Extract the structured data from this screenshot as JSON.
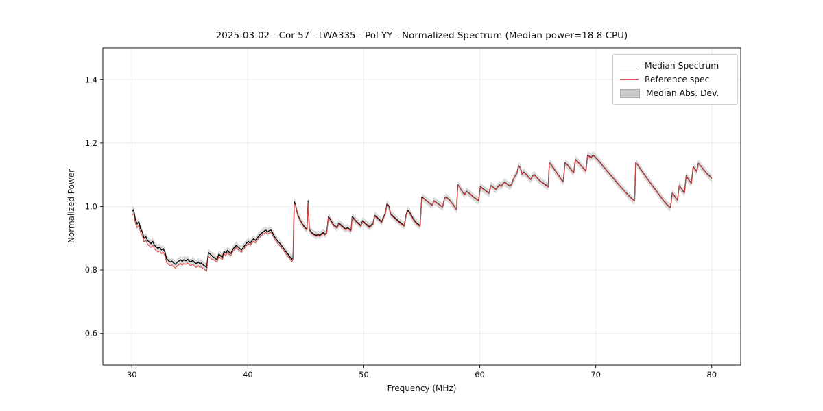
{
  "figure": {
    "title": "2025-03-02 - Cor 57 - LWA335 - Pol YY - Normalized Spectrum (Median power=18.8 CPU)",
    "xlabel": "Frequency (MHz)",
    "ylabel": "Normalized Power"
  },
  "legend": {
    "position": "upper right",
    "items": [
      {
        "label": "Median Spectrum",
        "type": "line",
        "color": "#000000"
      },
      {
        "label": "Reference spec",
        "type": "line",
        "color": "#e04b4b"
      },
      {
        "label": "Median Abs. Dev.",
        "type": "patch",
        "color": "#c9c9c9"
      }
    ]
  },
  "chart_data": {
    "type": "line",
    "title": "2025-03-02 - Cor 57 - LWA335 - Pol YY - Normalized Spectrum (Median power=18.8 CPU)",
    "xlabel": "Frequency (MHz)",
    "ylabel": "Normalized Power",
    "xlim": [
      27.5,
      82.5
    ],
    "ylim": [
      0.5,
      1.5
    ],
    "xticks": [
      30,
      40,
      50,
      60,
      70,
      80
    ],
    "xtick_labels": [
      "30",
      "40",
      "50",
      "60",
      "70",
      "80"
    ],
    "yticks": [
      0.6,
      0.8,
      1.0,
      1.2,
      1.4
    ],
    "ytick_labels": [
      "0.6",
      "0.8",
      "1.0",
      "1.2",
      "1.4"
    ],
    "grid": true,
    "legend_position": "upper right",
    "colors": {
      "median": "#000000",
      "reference": "#e04b4b",
      "band": "#b0b0b0",
      "grid": "#ebebeb",
      "spine": "#1a1a1a"
    },
    "band_halfwidth": 0.012,
    "reference_offsets": [
      {
        "x_max": 37,
        "dy": -0.012
      },
      {
        "x_max": 44,
        "dy": -0.007
      },
      {
        "x_max": 55,
        "dy": -0.003
      },
      {
        "x_max": 82.5,
        "dy": -0.001
      }
    ],
    "series_median_points": [
      [
        30.0,
        0.985
      ],
      [
        30.15,
        0.99
      ],
      [
        30.3,
        0.96
      ],
      [
        30.45,
        0.945
      ],
      [
        30.6,
        0.952
      ],
      [
        30.75,
        0.93
      ],
      [
        30.9,
        0.92
      ],
      [
        31.05,
        0.9
      ],
      [
        31.2,
        0.905
      ],
      [
        31.35,
        0.893
      ],
      [
        31.5,
        0.888
      ],
      [
        31.65,
        0.883
      ],
      [
        31.8,
        0.89
      ],
      [
        31.95,
        0.878
      ],
      [
        32.1,
        0.873
      ],
      [
        32.25,
        0.868
      ],
      [
        32.4,
        0.872
      ],
      [
        32.55,
        0.863
      ],
      [
        32.7,
        0.868
      ],
      [
        32.85,
        0.856
      ],
      [
        33.0,
        0.835
      ],
      [
        33.15,
        0.83
      ],
      [
        33.3,
        0.825
      ],
      [
        33.45,
        0.828
      ],
      [
        33.6,
        0.822
      ],
      [
        33.75,
        0.818
      ],
      [
        33.9,
        0.824
      ],
      [
        34.05,
        0.828
      ],
      [
        34.2,
        0.832
      ],
      [
        34.35,
        0.827
      ],
      [
        34.5,
        0.833
      ],
      [
        34.65,
        0.829
      ],
      [
        34.8,
        0.834
      ],
      [
        34.95,
        0.828
      ],
      [
        35.1,
        0.825
      ],
      [
        35.25,
        0.83
      ],
      [
        35.4,
        0.824
      ],
      [
        35.55,
        0.82
      ],
      [
        35.7,
        0.826
      ],
      [
        35.85,
        0.82
      ],
      [
        36.0,
        0.822
      ],
      [
        36.15,
        0.816
      ],
      [
        36.3,
        0.812
      ],
      [
        36.45,
        0.808
      ],
      [
        36.6,
        0.855
      ],
      [
        36.75,
        0.85
      ],
      [
        36.9,
        0.845
      ],
      [
        37.05,
        0.84
      ],
      [
        37.2,
        0.836
      ],
      [
        37.35,
        0.832
      ],
      [
        37.5,
        0.85
      ],
      [
        37.65,
        0.845
      ],
      [
        37.8,
        0.84
      ],
      [
        37.95,
        0.858
      ],
      [
        38.1,
        0.853
      ],
      [
        38.25,
        0.862
      ],
      [
        38.4,
        0.856
      ],
      [
        38.55,
        0.852
      ],
      [
        38.7,
        0.865
      ],
      [
        38.85,
        0.872
      ],
      [
        39.0,
        0.878
      ],
      [
        39.15,
        0.872
      ],
      [
        39.3,
        0.868
      ],
      [
        39.45,
        0.863
      ],
      [
        39.6,
        0.87
      ],
      [
        39.75,
        0.878
      ],
      [
        39.9,
        0.885
      ],
      [
        40.05,
        0.89
      ],
      [
        40.2,
        0.884
      ],
      [
        40.35,
        0.892
      ],
      [
        40.5,
        0.898
      ],
      [
        40.65,
        0.893
      ],
      [
        40.8,
        0.9
      ],
      [
        40.95,
        0.908
      ],
      [
        41.1,
        0.913
      ],
      [
        41.25,
        0.918
      ],
      [
        41.4,
        0.922
      ],
      [
        41.55,
        0.926
      ],
      [
        41.7,
        0.92
      ],
      [
        41.85,
        0.924
      ],
      [
        42.0,
        0.926
      ],
      [
        42.15,
        0.916
      ],
      [
        42.3,
        0.905
      ],
      [
        42.45,
        0.897
      ],
      [
        42.6,
        0.89
      ],
      [
        42.75,
        0.884
      ],
      [
        42.9,
        0.877
      ],
      [
        43.05,
        0.87
      ],
      [
        43.2,
        0.862
      ],
      [
        43.35,
        0.855
      ],
      [
        43.5,
        0.848
      ],
      [
        43.65,
        0.84
      ],
      [
        43.8,
        0.834
      ],
      [
        43.9,
        0.84
      ],
      [
        44.0,
        1.015
      ],
      [
        44.1,
        1.008
      ],
      [
        44.2,
        0.988
      ],
      [
        44.35,
        0.97
      ],
      [
        44.5,
        0.958
      ],
      [
        44.65,
        0.948
      ],
      [
        44.8,
        0.94
      ],
      [
        44.95,
        0.933
      ],
      [
        45.1,
        0.928
      ],
      [
        45.2,
        1.018
      ],
      [
        45.3,
        0.928
      ],
      [
        45.45,
        0.92
      ],
      [
        45.6,
        0.915
      ],
      [
        45.75,
        0.912
      ],
      [
        45.9,
        0.909
      ],
      [
        46.05,
        0.913
      ],
      [
        46.2,
        0.909
      ],
      [
        46.35,
        0.914
      ],
      [
        46.5,
        0.918
      ],
      [
        46.65,
        0.913
      ],
      [
        46.8,
        0.917
      ],
      [
        46.95,
        0.968
      ],
      [
        47.1,
        0.96
      ],
      [
        47.25,
        0.95
      ],
      [
        47.4,
        0.942
      ],
      [
        47.55,
        0.938
      ],
      [
        47.7,
        0.934
      ],
      [
        47.85,
        0.948
      ],
      [
        48.0,
        0.943
      ],
      [
        48.15,
        0.938
      ],
      [
        48.3,
        0.933
      ],
      [
        48.45,
        0.929
      ],
      [
        48.6,
        0.934
      ],
      [
        48.75,
        0.929
      ],
      [
        48.9,
        0.925
      ],
      [
        49.0,
        0.968
      ],
      [
        49.15,
        0.962
      ],
      [
        49.3,
        0.955
      ],
      [
        49.45,
        0.95
      ],
      [
        49.6,
        0.945
      ],
      [
        49.75,
        0.94
      ],
      [
        49.9,
        0.955
      ],
      [
        50.05,
        0.95
      ],
      [
        50.2,
        0.945
      ],
      [
        50.35,
        0.94
      ],
      [
        50.5,
        0.936
      ],
      [
        50.65,
        0.942
      ],
      [
        50.8,
        0.947
      ],
      [
        50.95,
        0.972
      ],
      [
        51.1,
        0.967
      ],
      [
        51.25,
        0.962
      ],
      [
        51.4,
        0.957
      ],
      [
        51.55,
        0.952
      ],
      [
        51.7,
        0.966
      ],
      [
        51.85,
        0.978
      ],
      [
        52.0,
        1.008
      ],
      [
        52.15,
        1.002
      ],
      [
        52.3,
        0.978
      ],
      [
        52.45,
        0.972
      ],
      [
        52.6,
        0.967
      ],
      [
        52.75,
        0.962
      ],
      [
        52.9,
        0.957
      ],
      [
        53.05,
        0.952
      ],
      [
        53.2,
        0.948
      ],
      [
        53.35,
        0.944
      ],
      [
        53.5,
        0.94
      ],
      [
        53.65,
        0.975
      ],
      [
        53.8,
        0.988
      ],
      [
        53.95,
        0.982
      ],
      [
        54.1,
        0.972
      ],
      [
        54.25,
        0.962
      ],
      [
        54.4,
        0.954
      ],
      [
        54.55,
        0.948
      ],
      [
        54.7,
        0.944
      ],
      [
        54.85,
        0.94
      ],
      [
        55.0,
        1.03
      ],
      [
        55.15,
        1.026
      ],
      [
        55.3,
        1.021
      ],
      [
        55.45,
        1.017
      ],
      [
        55.6,
        1.013
      ],
      [
        55.75,
        1.008
      ],
      [
        55.9,
        1.004
      ],
      [
        56.05,
        1.018
      ],
      [
        56.2,
        1.014
      ],
      [
        56.35,
        1.01
      ],
      [
        56.5,
        1.006
      ],
      [
        56.65,
        1.002
      ],
      [
        56.8,
        0.998
      ],
      [
        56.95,
        1.025
      ],
      [
        57.1,
        1.03
      ],
      [
        57.25,
        1.025
      ],
      [
        57.4,
        1.02
      ],
      [
        57.55,
        1.013
      ],
      [
        57.7,
        1.006
      ],
      [
        57.85,
        0.998
      ],
      [
        58.0,
        0.99
      ],
      [
        58.1,
        1.068
      ],
      [
        58.25,
        1.062
      ],
      [
        58.4,
        1.052
      ],
      [
        58.55,
        1.044
      ],
      [
        58.7,
        1.038
      ],
      [
        58.85,
        1.048
      ],
      [
        59.0,
        1.044
      ],
      [
        59.15,
        1.04
      ],
      [
        59.3,
        1.035
      ],
      [
        59.45,
        1.03
      ],
      [
        59.6,
        1.026
      ],
      [
        59.75,
        1.022
      ],
      [
        59.9,
        1.018
      ],
      [
        60.05,
        1.062
      ],
      [
        60.2,
        1.058
      ],
      [
        60.35,
        1.054
      ],
      [
        60.5,
        1.05
      ],
      [
        60.65,
        1.046
      ],
      [
        60.8,
        1.042
      ],
      [
        60.95,
        1.066
      ],
      [
        61.1,
        1.062
      ],
      [
        61.25,
        1.058
      ],
      [
        61.4,
        1.054
      ],
      [
        61.55,
        1.062
      ],
      [
        61.7,
        1.068
      ],
      [
        61.85,
        1.064
      ],
      [
        62.0,
        1.072
      ],
      [
        62.15,
        1.077
      ],
      [
        62.3,
        1.072
      ],
      [
        62.45,
        1.068
      ],
      [
        62.6,
        1.064
      ],
      [
        62.75,
        1.07
      ],
      [
        62.9,
        1.086
      ],
      [
        63.05,
        1.096
      ],
      [
        63.2,
        1.105
      ],
      [
        63.35,
        1.128
      ],
      [
        63.5,
        1.122
      ],
      [
        63.65,
        1.102
      ],
      [
        63.8,
        1.108
      ],
      [
        63.95,
        1.103
      ],
      [
        64.1,
        1.097
      ],
      [
        64.25,
        1.09
      ],
      [
        64.4,
        1.085
      ],
      [
        64.55,
        1.096
      ],
      [
        64.7,
        1.1
      ],
      [
        64.85,
        1.094
      ],
      [
        65.0,
        1.088
      ],
      [
        65.15,
        1.082
      ],
      [
        65.3,
        1.078
      ],
      [
        65.45,
        1.074
      ],
      [
        65.6,
        1.07
      ],
      [
        65.75,
        1.066
      ],
      [
        65.9,
        1.062
      ],
      [
        66.0,
        1.138
      ],
      [
        66.15,
        1.132
      ],
      [
        66.3,
        1.124
      ],
      [
        66.45,
        1.116
      ],
      [
        66.6,
        1.108
      ],
      [
        66.75,
        1.1
      ],
      [
        66.9,
        1.092
      ],
      [
        67.05,
        1.084
      ],
      [
        67.2,
        1.078
      ],
      [
        67.35,
        1.138
      ],
      [
        67.5,
        1.133
      ],
      [
        67.65,
        1.127
      ],
      [
        67.8,
        1.12
      ],
      [
        67.95,
        1.113
      ],
      [
        68.1,
        1.107
      ],
      [
        68.25,
        1.148
      ],
      [
        68.4,
        1.143
      ],
      [
        68.55,
        1.137
      ],
      [
        68.7,
        1.13
      ],
      [
        68.85,
        1.124
      ],
      [
        69.0,
        1.118
      ],
      [
        69.15,
        1.112
      ],
      [
        69.3,
        1.162
      ],
      [
        69.45,
        1.158
      ],
      [
        69.6,
        1.154
      ],
      [
        69.75,
        1.162
      ],
      [
        69.9,
        1.158
      ],
      [
        70.05,
        1.152
      ],
      [
        70.2,
        1.146
      ],
      [
        70.35,
        1.14
      ],
      [
        70.5,
        1.133
      ],
      [
        70.65,
        1.126
      ],
      [
        70.8,
        1.12
      ],
      [
        70.95,
        1.113
      ],
      [
        71.1,
        1.107
      ],
      [
        71.25,
        1.1
      ],
      [
        71.4,
        1.094
      ],
      [
        71.55,
        1.088
      ],
      [
        71.7,
        1.081
      ],
      [
        71.85,
        1.074
      ],
      [
        72.0,
        1.068
      ],
      [
        72.15,
        1.062
      ],
      [
        72.3,
        1.056
      ],
      [
        72.45,
        1.05
      ],
      [
        72.6,
        1.044
      ],
      [
        72.75,
        1.038
      ],
      [
        72.9,
        1.032
      ],
      [
        73.05,
        1.027
      ],
      [
        73.2,
        1.022
      ],
      [
        73.35,
        1.018
      ],
      [
        73.45,
        1.138
      ],
      [
        73.6,
        1.132
      ],
      [
        73.75,
        1.124
      ],
      [
        73.9,
        1.116
      ],
      [
        74.05,
        1.108
      ],
      [
        74.2,
        1.1
      ],
      [
        74.35,
        1.092
      ],
      [
        74.5,
        1.085
      ],
      [
        74.65,
        1.077
      ],
      [
        74.8,
        1.07
      ],
      [
        74.95,
        1.062
      ],
      [
        75.1,
        1.055
      ],
      [
        75.25,
        1.048
      ],
      [
        75.4,
        1.04
      ],
      [
        75.55,
        1.033
      ],
      [
        75.7,
        1.026
      ],
      [
        75.85,
        1.018
      ],
      [
        76.0,
        1.012
      ],
      [
        76.15,
        1.006
      ],
      [
        76.3,
        1.0
      ],
      [
        76.45,
        0.997
      ],
      [
        76.6,
        1.042
      ],
      [
        76.75,
        1.035
      ],
      [
        76.9,
        1.027
      ],
      [
        77.05,
        1.02
      ],
      [
        77.2,
        1.066
      ],
      [
        77.35,
        1.058
      ],
      [
        77.5,
        1.05
      ],
      [
        77.65,
        1.043
      ],
      [
        77.8,
        1.096
      ],
      [
        77.95,
        1.088
      ],
      [
        78.1,
        1.08
      ],
      [
        78.25,
        1.073
      ],
      [
        78.4,
        1.125
      ],
      [
        78.55,
        1.118
      ],
      [
        78.7,
        1.11
      ],
      [
        78.85,
        1.136
      ],
      [
        79.0,
        1.13
      ],
      [
        79.15,
        1.123
      ],
      [
        79.3,
        1.116
      ],
      [
        79.45,
        1.11
      ],
      [
        79.6,
        1.103
      ],
      [
        79.75,
        1.098
      ],
      [
        79.9,
        1.093
      ],
      [
        80.0,
        1.088
      ]
    ]
  }
}
